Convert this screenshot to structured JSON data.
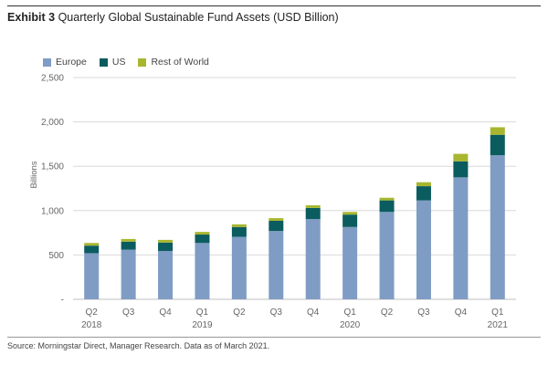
{
  "header": {
    "exhibit": "Exhibit 3",
    "title": "Quarterly Global Sustainable Fund Assets (USD Billion)"
  },
  "footer": {
    "source": "Source: Morningstar Direct, Manager Research. Data as of March 2021."
  },
  "chart_data": {
    "type": "bar",
    "stacked": true,
    "title": "Quarterly Global Sustainable Fund Assets (USD Billion)",
    "ylabel": "Billions",
    "xlabel": "",
    "ylim": [
      0,
      2500
    ],
    "yticks": [
      0,
      500,
      1000,
      1500,
      2000,
      2500
    ],
    "ytick_labels": [
      "-",
      "500",
      "1,000",
      "1,500",
      "2,000",
      "2,500"
    ],
    "grid": "horizontal",
    "legend_position": "top-left",
    "categories": [
      "Q2",
      "Q3",
      "Q4",
      "Q1",
      "Q2",
      "Q3",
      "Q4",
      "Q1",
      "Q2",
      "Q3",
      "Q4",
      "Q1"
    ],
    "year_labels": [
      "2018",
      "",
      "",
      "2019",
      "",
      "",
      "",
      "2020",
      "",
      "",
      "",
      "2021"
    ],
    "series": [
      {
        "name": "Europe",
        "color": "#7f9cc4",
        "values": [
          520,
          560,
          545,
          635,
          705,
          770,
          905,
          815,
          985,
          1115,
          1375,
          1625
        ]
      },
      {
        "name": "US",
        "color": "#0b5c5f",
        "values": [
          85,
          90,
          95,
          95,
          110,
          115,
          125,
          140,
          130,
          160,
          180,
          230
        ]
      },
      {
        "name": "Rest of World",
        "color": "#a8b62f",
        "values": [
          30,
          30,
          30,
          30,
          30,
          30,
          30,
          30,
          30,
          45,
          85,
          85
        ]
      }
    ]
  }
}
